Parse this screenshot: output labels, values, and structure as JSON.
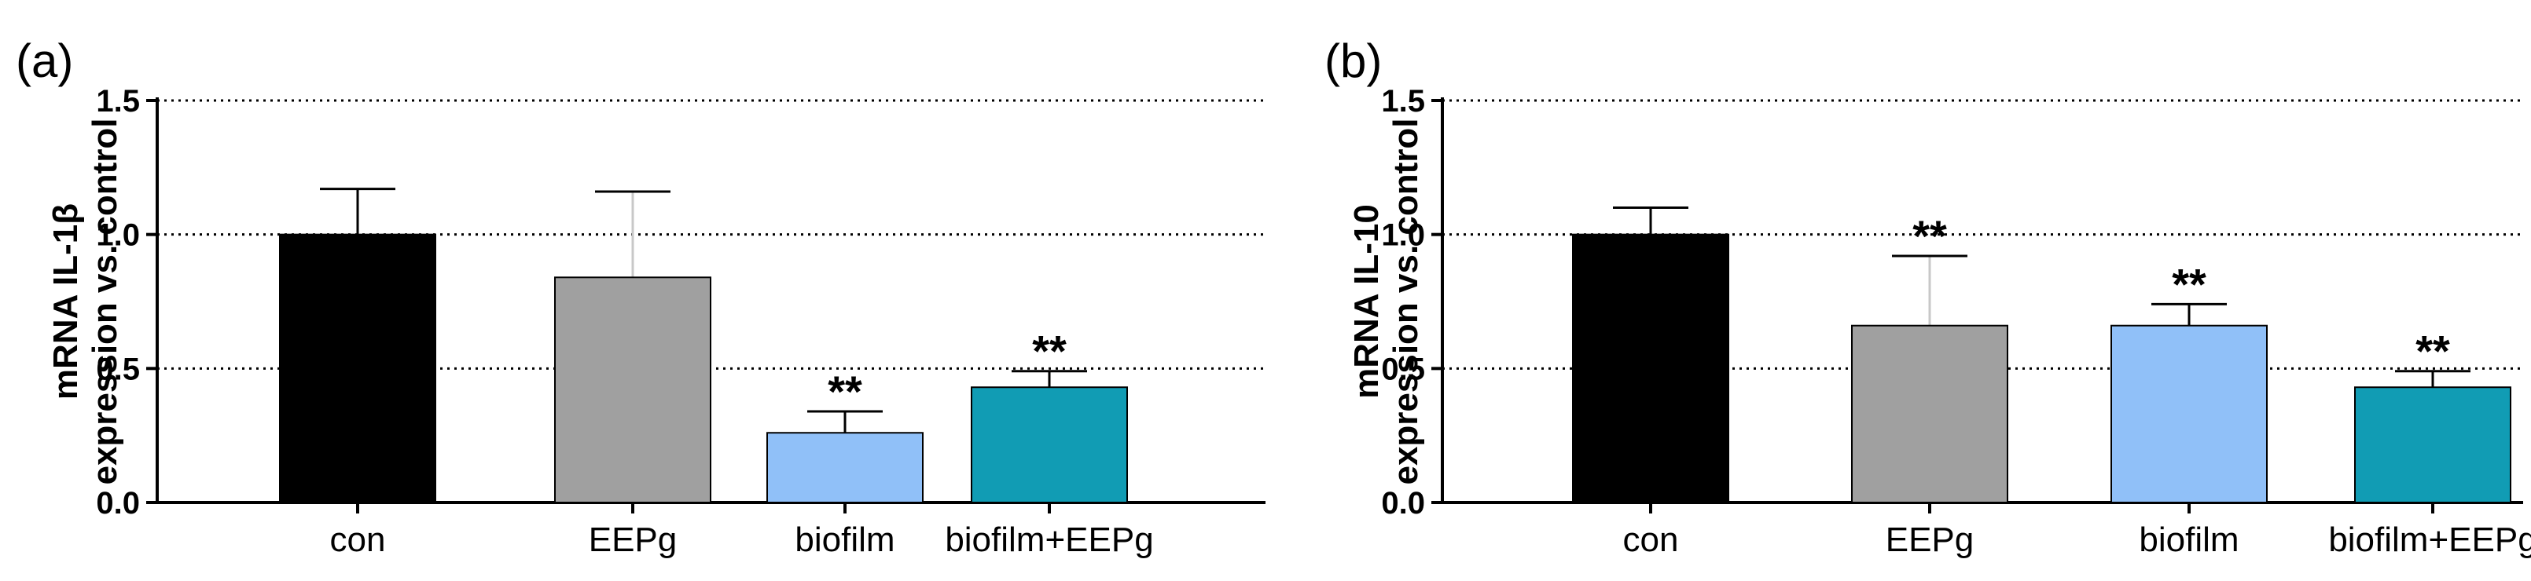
{
  "chart_data": [
    {
      "type": "bar",
      "panel_label": "(a)",
      "ylabel_lines": [
        "mRNA IL-1β",
        "expression vs. control"
      ],
      "categories": [
        "con",
        "EEPg",
        "biofilm",
        "biofilm+EEPg"
      ],
      "values": [
        1.0,
        0.84,
        0.26,
        0.43
      ],
      "error_upper": [
        0.17,
        0.32,
        0.08,
        0.06
      ],
      "significance": [
        "",
        "",
        "**",
        "**"
      ],
      "colors": [
        "#000000",
        "#a0a0a0",
        "#90c0f8",
        "#119cb4"
      ],
      "ylim": [
        0,
        1.5
      ],
      "yticks": [
        "0.0",
        "0.5",
        "1.0",
        "1.5"
      ],
      "ytick_values": [
        0,
        0.5,
        1.0,
        1.5
      ],
      "grid": "dotted horizontal"
    },
    {
      "type": "bar",
      "panel_label": "(b)",
      "ylabel_lines": [
        "mRNA IL-10",
        "expression vs. control"
      ],
      "categories": [
        "con",
        "EEPg",
        "biofilm",
        "biofilm+EEPg"
      ],
      "values": [
        1.0,
        0.66,
        0.66,
        0.43
      ],
      "error_upper": [
        0.1,
        0.26,
        0.08,
        0.06
      ],
      "significance": [
        "",
        "**",
        "**",
        "**"
      ],
      "colors": [
        "#000000",
        "#a0a0a0",
        "#90c0f8",
        "#119cb4"
      ],
      "ylim": [
        0,
        1.5
      ],
      "yticks": [
        "0.0",
        "0.5",
        "1.0",
        "1.5"
      ],
      "ytick_values": [
        0,
        0.5,
        1.0,
        1.5
      ],
      "grid": "dotted horizontal"
    }
  ]
}
